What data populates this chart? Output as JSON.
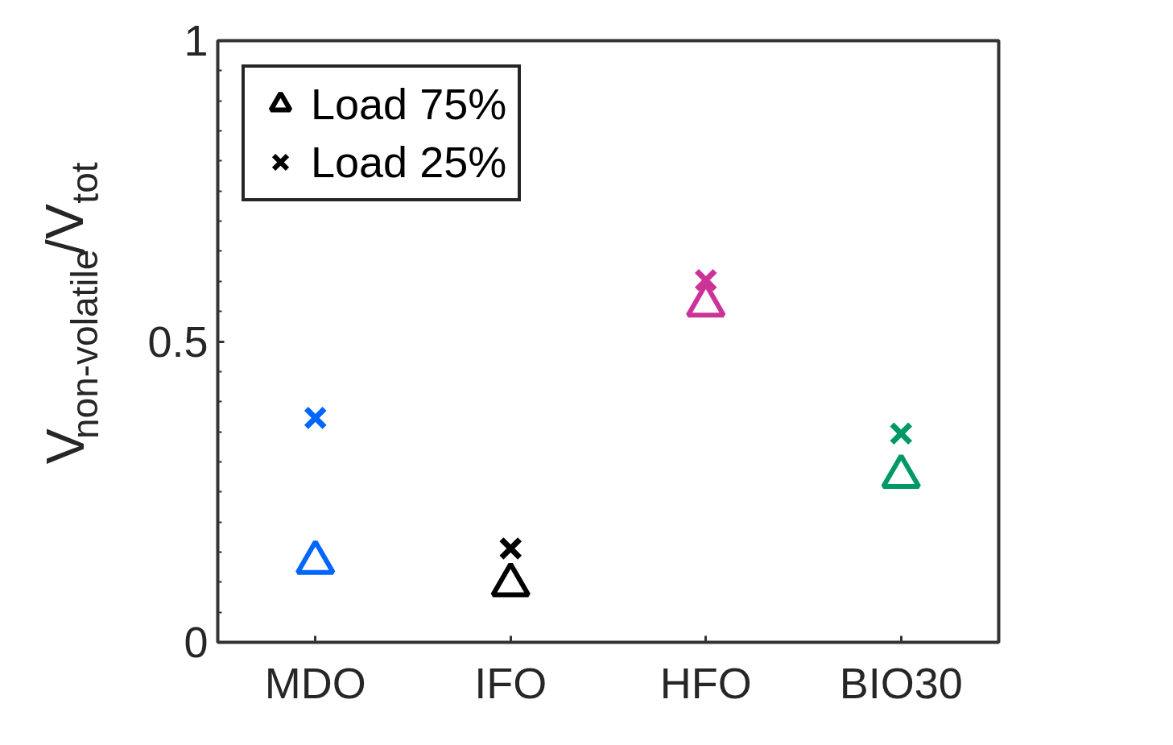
{
  "chart_data": {
    "type": "scatter",
    "categories": [
      "MDO",
      "IFO",
      "HFO",
      "BIO30"
    ],
    "ylabel": "V$_{non-volatile}$/V$_{tot}$",
    "ylim": [
      0,
      1
    ],
    "yticks": [
      0,
      0.5,
      1
    ],
    "grid": false,
    "legend": "top left",
    "series": [
      {
        "name": "Load 75%",
        "marker": "triangle",
        "color": "#000000",
        "colors": [
          "#0066ff",
          "#000000",
          "#cc3399",
          "#009966"
        ],
        "values": [
          0.133,
          0.096,
          0.561,
          0.276
        ]
      },
      {
        "name": "Load 25%",
        "marker": "cross",
        "color": "#000000",
        "colors": [
          "#0066ff",
          "#000000",
          "#cc3399",
          "#009966"
        ],
        "values": [
          0.373,
          0.156,
          0.602,
          0.347
        ]
      }
    ]
  }
}
